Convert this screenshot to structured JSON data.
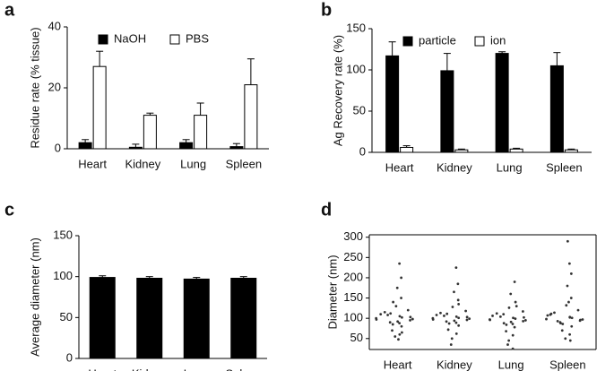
{
  "chart_data": [
    {
      "type": "bar",
      "panel_label": "a",
      "y_label": "Residue rate  (% tissue)",
      "categories": [
        "Heart",
        "Kidney",
        "Lung",
        "Spleen"
      ],
      "series": [
        {
          "name": "NaOH",
          "color": "#000000",
          "values": [
            2,
            0.5,
            2,
            0.7
          ],
          "errors": [
            1,
            1,
            1,
            1
          ]
        },
        {
          "name": "PBS",
          "color": "#ffffff",
          "values": [
            27,
            11,
            11,
            21
          ],
          "errors": [
            5,
            0.7,
            4,
            8.5
          ]
        }
      ],
      "ylim": [
        0,
        40
      ],
      "yticks": [
        0,
        20,
        40
      ],
      "legend": "top"
    },
    {
      "type": "bar",
      "panel_label": "b",
      "y_label": "Ag Recovery rate  (%)",
      "categories": [
        "Heart",
        "Kidney",
        "Lung",
        "Spleen"
      ],
      "series": [
        {
          "name": "particle",
          "color": "#000000",
          "values": [
            117,
            99,
            120,
            105
          ],
          "errors": [
            17,
            21,
            2,
            16
          ]
        },
        {
          "name": "ion",
          "color": "#ffffff",
          "values": [
            6,
            3,
            4,
            3
          ],
          "errors": [
            2,
            1,
            1,
            1
          ]
        }
      ],
      "ylim": [
        0,
        150
      ],
      "yticks": [
        0,
        50,
        100,
        150
      ],
      "legend": "top"
    },
    {
      "type": "bar",
      "panel_label": "c",
      "y_label": "Average diameter (nm)",
      "categories": [
        "Heart",
        "Kidney",
        "Lung",
        "Spleen"
      ],
      "series": [
        {
          "color": "#000000",
          "values": [
            99,
            98,
            97,
            98
          ],
          "errors": [
            2,
            2,
            2,
            2
          ]
        }
      ],
      "ylim": [
        0,
        150
      ],
      "yticks": [
        0,
        50,
        100,
        150
      ]
    },
    {
      "type": "strip",
      "panel_label": "d",
      "y_label": "Diameter (nm)",
      "categories": [
        "Heart",
        "Kidney",
        "Lung",
        "Spleen"
      ],
      "color": "#333333",
      "values": [
        [
          100,
          95,
          105,
          90,
          110,
          98,
          102,
          85,
          115,
          120,
          80,
          130,
          70,
          150,
          60,
          175,
          55,
          200,
          235,
          92,
          108,
          97,
          103,
          88,
          112,
          140,
          65,
          48
        ],
        [
          100,
          96,
          104,
          92,
          108,
          99,
          101,
          87,
          113,
          118,
          82,
          128,
          72,
          145,
          62,
          165,
          50,
          185,
          225,
          94,
          106,
          97,
          103,
          89,
          111,
          35,
          135
        ],
        [
          97,
          93,
          101,
          88,
          106,
          95,
          99,
          84,
          112,
          117,
          78,
          126,
          68,
          140,
          58,
          160,
          45,
          190,
          25,
          91,
          104,
          96,
          102,
          86,
          110,
          35,
          130
        ],
        [
          98,
          94,
          103,
          90,
          109,
          97,
          101,
          86,
          114,
          120,
          80,
          132,
          70,
          150,
          60,
          180,
          50,
          210,
          235,
          290,
          93,
          107,
          96,
          102,
          88,
          111,
          45,
          140
        ]
      ],
      "ylim": [
        23,
        306
      ],
      "yticks": [
        50,
        100,
        150,
        200,
        250,
        300
      ],
      "frame": true
    }
  ]
}
